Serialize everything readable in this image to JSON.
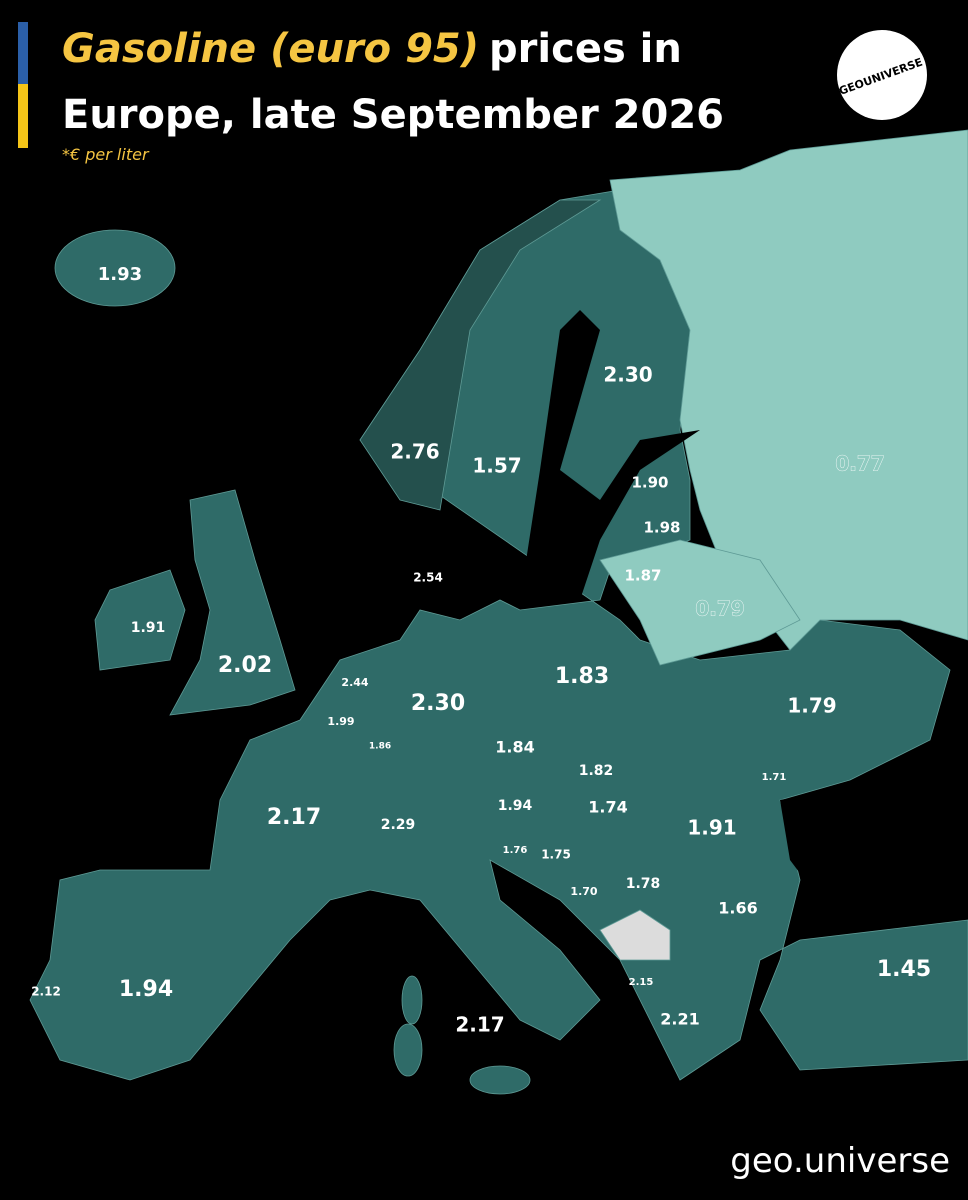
{
  "header": {
    "title_highlight": "Gasoline (euro 95)",
    "title_rest": "prices in",
    "title_line2": "Europe, late September 2026",
    "subtitle": "*€ per liter"
  },
  "logo": "GEOUNIVERSE",
  "map": {
    "labels": [
      "1.93",
      "2.30",
      "2.76",
      "1.57",
      "0.77",
      "1.90",
      "1.98",
      "1.87",
      "2.54",
      "0.79",
      "1.91",
      "2.02",
      "2.44",
      "2.30",
      "1.83",
      "1.79",
      "1.99",
      "1.86",
      "1.84",
      "1.82",
      "1.71",
      "2.17",
      "2.29",
      "1.94",
      "1.74",
      "1.91",
      "1.76",
      "1.75",
      "1.70",
      "1.78",
      "1.66",
      "1.45",
      "2.12",
      "1.94",
      "2.15",
      "2.21",
      "2.17"
    ]
  },
  "footer": "geo.universe"
}
